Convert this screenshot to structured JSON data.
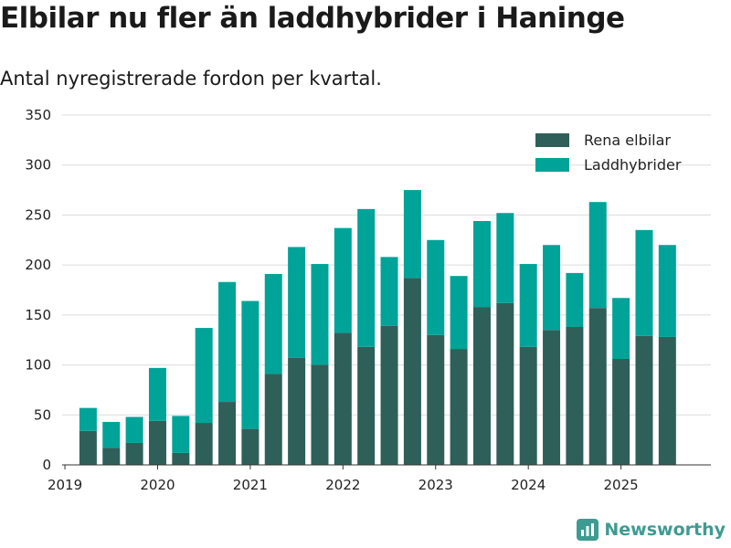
{
  "chart_data": {
    "type": "bar",
    "stacked": true,
    "title": "Elbilar nu fler än laddhybrider i Haninge",
    "subtitle": "Antal nyregistrerade fordon per kvartal.",
    "xlabel": "",
    "ylabel": "",
    "ylim": [
      0,
      350
    ],
    "yticks": [
      0,
      50,
      100,
      150,
      200,
      250,
      300,
      350
    ],
    "xlim": [
      2018.97,
      2025.97
    ],
    "xticks": [
      2019,
      2020,
      2021,
      2022,
      2023,
      2024,
      2025
    ],
    "x": [
      2019.25,
      2019.5,
      2019.75,
      2020.0,
      2020.25,
      2020.5,
      2020.75,
      2021.0,
      2021.25,
      2021.5,
      2021.75,
      2022.0,
      2022.25,
      2022.5,
      2022.75,
      2023.0,
      2023.25,
      2023.5,
      2023.75,
      2024.0,
      2024.25,
      2024.5,
      2024.75,
      2025.0,
      2025.25,
      2025.5
    ],
    "series": [
      {
        "name": "Rena elbilar",
        "color": "#2f5f59",
        "values": [
          34,
          17,
          22,
          44,
          12,
          42,
          63,
          36,
          91,
          107,
          100,
          132,
          118,
          139,
          187,
          130,
          116,
          158,
          162,
          118,
          135,
          138,
          157,
          106,
          129,
          128
        ]
      },
      {
        "name": "Laddhybrider",
        "color": "#00a398",
        "values": [
          23,
          26,
          26,
          53,
          37,
          95,
          120,
          128,
          100,
          111,
          101,
          105,
          138,
          69,
          88,
          95,
          73,
          86,
          90,
          83,
          85,
          54,
          106,
          61,
          106,
          92
        ]
      }
    ],
    "legend_position": "top-right",
    "grid": true
  },
  "branding": {
    "name": "Newsworthy",
    "color": "#3e9b91"
  }
}
